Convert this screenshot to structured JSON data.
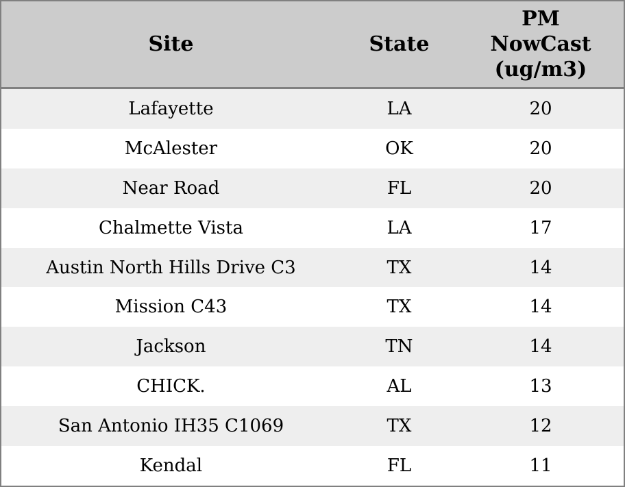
{
  "colors": {
    "header_background": "#cccccc",
    "header_rule": "#808080",
    "outer_border": "#808080",
    "row_stripe_odd": "#eeeeee",
    "row_stripe_even": "#ffffff",
    "text": "#000000"
  },
  "table": {
    "columns": [
      {
        "key": "site",
        "label": "Site"
      },
      {
        "key": "state",
        "label": "State"
      },
      {
        "key": "pm",
        "label": "PM\nNowCast\n(ug/m3)"
      }
    ],
    "rows": [
      {
        "site": "Lafayette",
        "state": "LA",
        "pm": "20"
      },
      {
        "site": "McAlester",
        "state": "OK",
        "pm": "20"
      },
      {
        "site": "Near Road",
        "state": "FL",
        "pm": "20"
      },
      {
        "site": "Chalmette Vista",
        "state": "LA",
        "pm": "17"
      },
      {
        "site": "Austin North Hills Drive C3",
        "state": "TX",
        "pm": "14"
      },
      {
        "site": "Mission C43",
        "state": "TX",
        "pm": "14"
      },
      {
        "site": "Jackson",
        "state": "TN",
        "pm": "14"
      },
      {
        "site": "CHICK.",
        "state": "AL",
        "pm": "13"
      },
      {
        "site": "San Antonio IH35 C1069",
        "state": "TX",
        "pm": "12"
      },
      {
        "site": "Kendal",
        "state": "FL",
        "pm": "11"
      }
    ]
  },
  "chart_data": {
    "type": "table",
    "title": "",
    "columns": [
      "Site",
      "State",
      "PM NowCast (ug/m3)"
    ],
    "categories": [
      "Lafayette",
      "McAlester",
      "Near Road",
      "Chalmette Vista",
      "Austin North Hills Drive C3",
      "Mission C43",
      "Jackson",
      "CHICK.",
      "San Antonio IH35 C1069",
      "Kendal"
    ],
    "states": [
      "LA",
      "OK",
      "FL",
      "LA",
      "TX",
      "TX",
      "TN",
      "AL",
      "TX",
      "FL"
    ],
    "values": [
      20,
      20,
      20,
      17,
      14,
      14,
      14,
      13,
      12,
      11
    ],
    "value_label": "PM NowCast (ug/m3)"
  }
}
